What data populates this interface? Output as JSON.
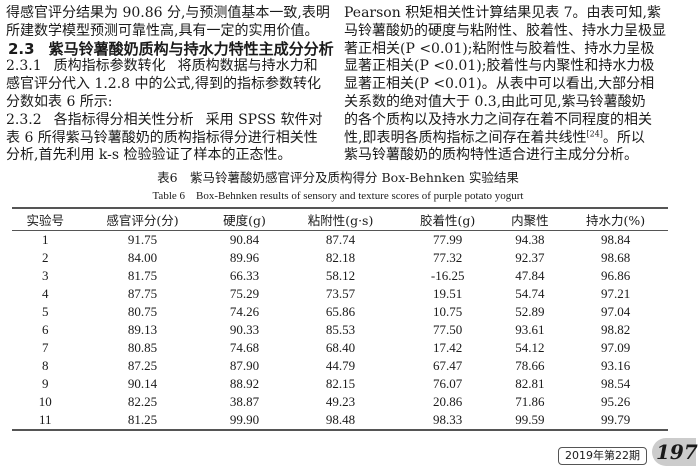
{
  "left_column": {
    "lines_top": [
      "得感官评分结果为 90.86 分,与预测值基本一致,表明",
      "所建数学模型预测可靠性高,具有一定的实用价值。"
    ],
    "section": {
      "number": "2.3",
      "title": "紫马铃薯酸奶质构与持水力特性主成分分析"
    },
    "sub1": {
      "number": "2.3.1",
      "title": "质构指标参数转化",
      "lines": [
        "将质构数据与持水力和",
        "感官评分代入 1.2.8 中的公式,得到的指标参数转化",
        "分数如表 6 所示:"
      ]
    },
    "sub2": {
      "number": "2.3.2",
      "title": "各指标得分相关性分析",
      "lines": [
        "采用 SPSS 软件对",
        "表 6 所得紫马铃薯酸奶的质构指标得分进行相关性",
        "分析,首先利用 k-s 检验验证了样本的正态性。"
      ]
    }
  },
  "right_column": {
    "lines": [
      "Pearson 积矩相关性计算结果见表 7。由表可知,紫",
      "马铃薯酸奶的硬度与粘附性、胶着性、持水力呈极显",
      "著正相关(P <0.01);粘附性与胶着性、持水力呈极",
      "显著正相关(P <0.01);胶着性与内聚性和持水力极",
      "显著正相关(P <0.01)。从表中可以看出,大部分相",
      "关系数的绝对值大于 0.3,由此可见,紫马铃薯酸奶",
      "的各个质构以及持水力之间存在着不同程度的相关"
    ],
    "line_cite": "性,即表明各质构指标之间存在着共线性",
    "cite": "[24]",
    "line_cite_after": "。所以",
    "last_line": "紫马铃薯酸奶的质构特性适合进行主成分分析。"
  },
  "table": {
    "caption_cn": "表6　紫马铃薯酸奶感官评分及质构得分 Box-Behnken 实验结果",
    "caption_en": "Table 6　Box-Behnken results of sensory and texture scores of purple potato yogurt",
    "headers": [
      "实验号",
      "感官评分(分)",
      "硬度(g)",
      "粘附性(g·s)",
      "胶着性(g)",
      "内聚性",
      "持水力(%)"
    ],
    "rows": [
      [
        "1",
        "91.75",
        "90.84",
        "87.74",
        "77.99",
        "94.38",
        "98.84"
      ],
      [
        "2",
        "84.00",
        "89.96",
        "82.18",
        "77.32",
        "92.37",
        "98.68"
      ],
      [
        "3",
        "81.75",
        "66.33",
        "58.12",
        "-16.25",
        "47.84",
        "96.86"
      ],
      [
        "4",
        "87.75",
        "75.29",
        "73.57",
        "19.51",
        "54.74",
        "97.21"
      ],
      [
        "5",
        "80.75",
        "74.26",
        "65.86",
        "10.75",
        "52.89",
        "97.04"
      ],
      [
        "6",
        "89.13",
        "90.33",
        "85.53",
        "77.50",
        "93.61",
        "98.82"
      ],
      [
        "7",
        "80.85",
        "74.68",
        "68.40",
        "17.42",
        "54.12",
        "97.09"
      ],
      [
        "8",
        "87.25",
        "87.90",
        "44.79",
        "67.47",
        "78.66",
        "93.16"
      ],
      [
        "9",
        "90.14",
        "88.92",
        "82.15",
        "76.07",
        "82.81",
        "98.54"
      ],
      [
        "10",
        "82.25",
        "38.87",
        "49.23",
        "20.86",
        "71.86",
        "95.26"
      ],
      [
        "11",
        "81.25",
        "99.90",
        "98.48",
        "98.33",
        "99.59",
        "99.79"
      ]
    ]
  },
  "footer": {
    "issue": "2019年第22期",
    "page": "197"
  }
}
